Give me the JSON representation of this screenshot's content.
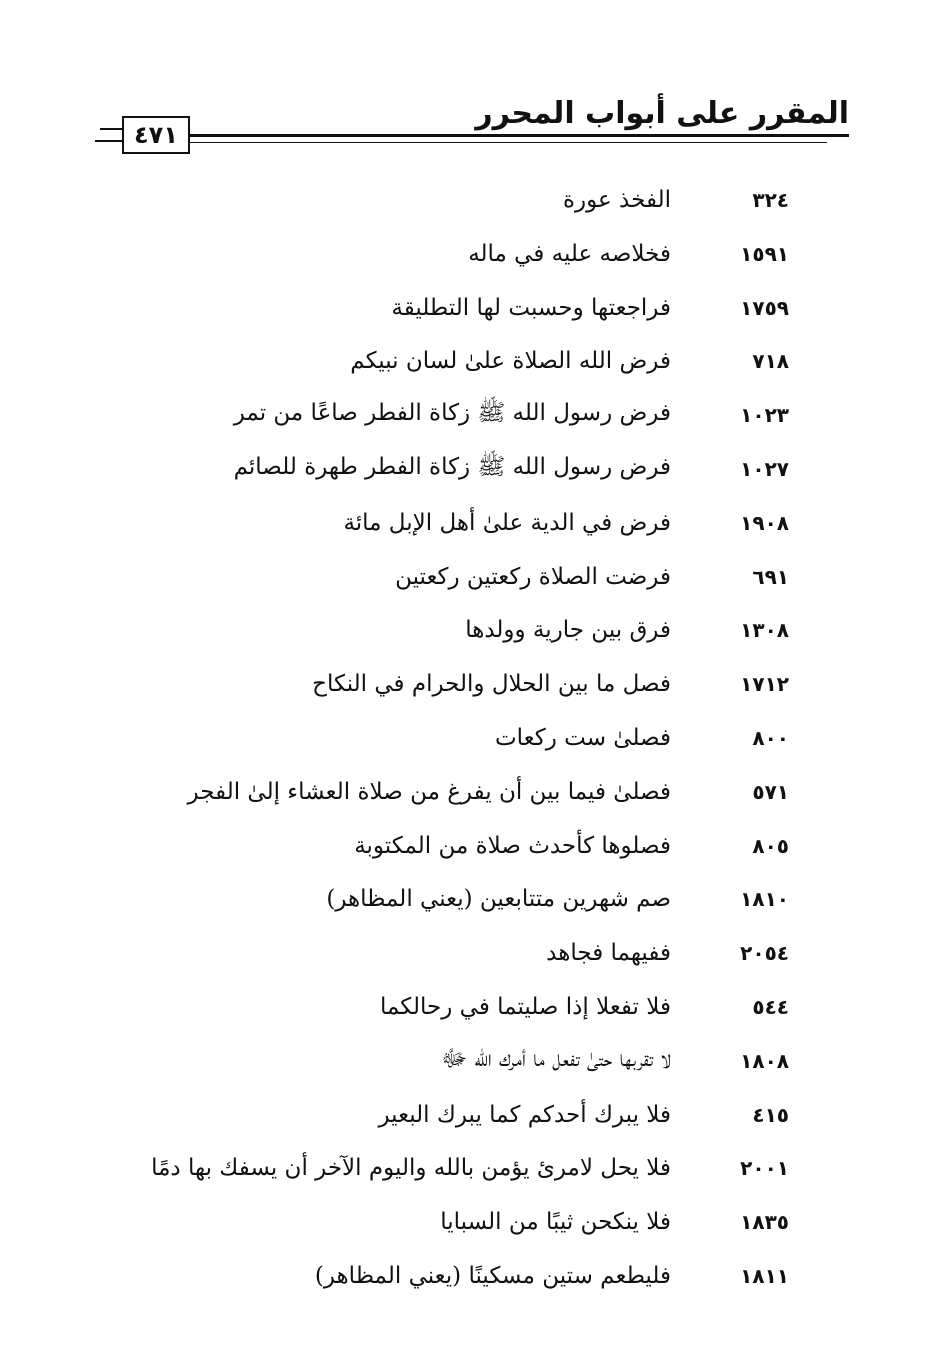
{
  "header": {
    "title": "المقرر على أبواب المحرر",
    "page_number": "٤٧١"
  },
  "entries": [
    {
      "text": "الفخذ عورة",
      "number": "٣٢٤"
    },
    {
      "text": "فخلاصه عليه في ماله",
      "number": "١٥٩١"
    },
    {
      "text": "فراجعتها وحسبت لها التطليقة",
      "number": "١٧٥٩"
    },
    {
      "text": "فرض الله الصلاة علىٰ لسان نبيكم",
      "number": "٧١٨"
    },
    {
      "text": "فرض رسول الله ﷺ زكاة الفطر صاعًا من تمر",
      "number": "١٠٢٣"
    },
    {
      "text": "فرض رسول الله ﷺ زكاة الفطر طهرة للصائم",
      "number": "١٠٢٧"
    },
    {
      "text": "فرض في الدية علىٰ أهل الإبل مائة",
      "number": "١٩٠٨"
    },
    {
      "text": "فرضت الصلاة ركعتين ركعتين",
      "number": "٦٩١"
    },
    {
      "text": "فرق بين جارية وولدها",
      "number": "١٣٠٨"
    },
    {
      "text": "فصل ما بين الحلال والحرام في النكاح",
      "number": "١٧١٢"
    },
    {
      "text": "فصلىٰ ست ركعات",
      "number": "٨٠٠"
    },
    {
      "text": "فصلىٰ فيما بين أن يفرغ من صلاة العشاء إلىٰ الفجر",
      "number": "٥٧١"
    },
    {
      "text": "فصلوها كأحدث صلاة من المكتوبة",
      "number": "٨٠٥"
    },
    {
      "text": "صم شهرين متتابعين (يعني المظاهر)",
      "number": "١٨١٠"
    },
    {
      "text": "ففيهما فجاهد",
      "number": "٢٠٥٤"
    },
    {
      "text": "فلا تفعلا إذا صليتما في رحالكما",
      "number": "٥٤٤"
    },
    {
      "text": "لا تقربها حتىٰ تفعل ما أمرك الله ﷻ",
      "number": "١٨٠٨"
    },
    {
      "text": "فلا يبرك أحدكم كما يبرك البعير",
      "number": "٤١٥"
    },
    {
      "text": "فلا يحل لامرئ يؤمن بالله واليوم الآخر أن يسفك بها دمًا",
      "number": "٢٠٠١"
    },
    {
      "text": "فلا ينكحن ثيبًا من السبايا",
      "number": "١٨٣٥"
    },
    {
      "text": "فليطعم ستين مسكينًا (يعني المظاهر)",
      "number": "١٨١١"
    }
  ]
}
